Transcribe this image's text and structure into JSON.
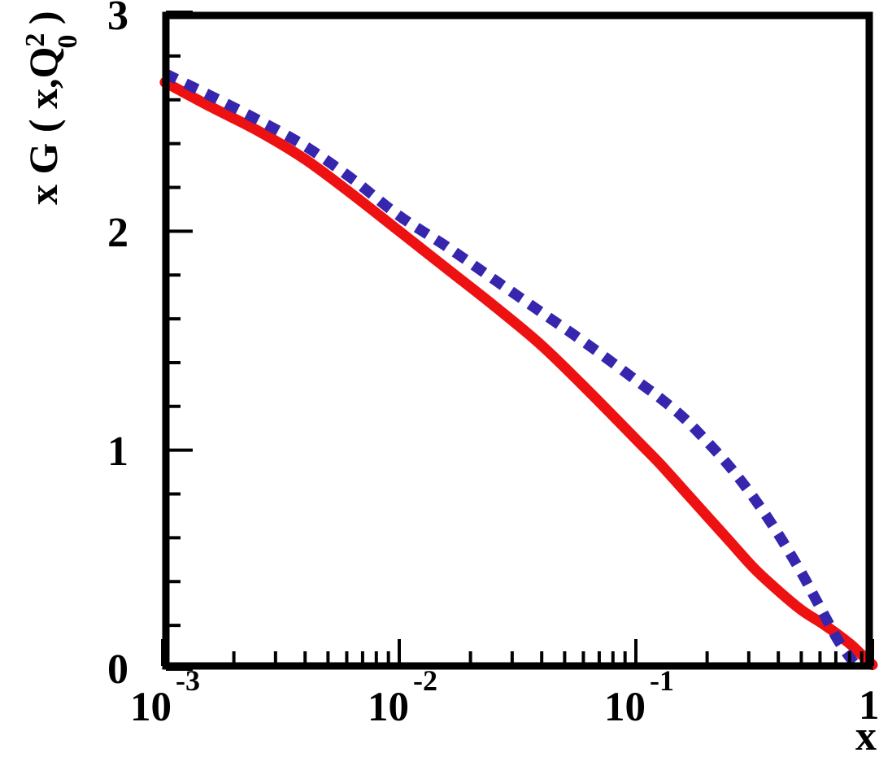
{
  "chart_data": {
    "type": "line",
    "title": "",
    "xlabel": "x",
    "ylabel": "x G ( x,Q0^2 )",
    "x_scale": "log",
    "xlim": [
      0.001,
      1
    ],
    "ylim": [
      0,
      3
    ],
    "grid": false,
    "legend": "none",
    "series": [
      {
        "name": "xG-solid-red",
        "color": "#ee1111",
        "line_style": "solid",
        "line_width": 13,
        "points": [
          [
            0.001023,
            2.68
          ],
          [
            0.001585,
            2.57
          ],
          [
            0.002512,
            2.46
          ],
          [
            0.003981,
            2.33
          ],
          [
            0.00631,
            2.17
          ],
          [
            0.01,
            2.0
          ],
          [
            0.01585,
            1.83
          ],
          [
            0.02512,
            1.66
          ],
          [
            0.03981,
            1.48
          ],
          [
            0.0631,
            1.27
          ],
          [
            0.1,
            1.05
          ],
          [
            0.1259,
            0.94
          ],
          [
            0.1585,
            0.82
          ],
          [
            0.1995,
            0.7
          ],
          [
            0.2512,
            0.58
          ],
          [
            0.3162,
            0.46
          ],
          [
            0.3981,
            0.36
          ],
          [
            0.5012,
            0.27
          ],
          [
            0.631,
            0.2
          ],
          [
            0.7943,
            0.12
          ],
          [
            0.8913,
            0.07
          ],
          [
            1.0,
            0.02
          ]
        ]
      },
      {
        "name": "xG-dashed-blue",
        "color": "#3626ae",
        "line_style": "dashed",
        "line_width": 13,
        "points": [
          [
            0.001023,
            2.72
          ],
          [
            0.001585,
            2.62
          ],
          [
            0.002512,
            2.51
          ],
          [
            0.003981,
            2.39
          ],
          [
            0.00631,
            2.24
          ],
          [
            0.01,
            2.07
          ],
          [
            0.01585,
            1.93
          ],
          [
            0.02512,
            1.78
          ],
          [
            0.03981,
            1.63
          ],
          [
            0.0631,
            1.48
          ],
          [
            0.1,
            1.32
          ],
          [
            0.1259,
            1.24
          ],
          [
            0.1585,
            1.15
          ],
          [
            0.1995,
            1.04
          ],
          [
            0.2512,
            0.92
          ],
          [
            0.3162,
            0.78
          ],
          [
            0.3981,
            0.62
          ],
          [
            0.5012,
            0.44
          ],
          [
            0.5623,
            0.34
          ],
          [
            0.631,
            0.24
          ],
          [
            0.7079,
            0.14
          ],
          [
            0.7943,
            0.06
          ],
          [
            0.8511,
            0.02
          ]
        ]
      }
    ]
  },
  "axes": {
    "y": {
      "labels": [
        {
          "v": 3,
          "t": "3"
        },
        {
          "v": 2,
          "t": "2"
        },
        {
          "v": 1,
          "t": "1"
        },
        {
          "v": 0,
          "t": "0"
        }
      ],
      "majors": [
        0,
        1,
        2,
        3
      ],
      "minor_step": 0.2
    },
    "x": {
      "title": "x",
      "decade_labels": [
        {
          "log": -3,
          "base": "10",
          "exp": "-3"
        },
        {
          "log": -2,
          "base": "10",
          "exp": "-2"
        },
        {
          "log": -1,
          "base": "10",
          "exp": "-1"
        },
        {
          "log": 0,
          "base": "1",
          "exp": ""
        }
      ],
      "major_logs": [
        -3,
        -2,
        -1,
        0
      ],
      "minor_decades": [
        -3,
        -2,
        -1
      ],
      "minor_multipliers": [
        2,
        3,
        4,
        5,
        6,
        7,
        8,
        9
      ]
    }
  },
  "y_title": {
    "main": "x G ( x,Q",
    "sup": "2",
    "sub": "0",
    "close": " )"
  },
  "colors": {
    "frame": "#000000",
    "background": "#ffffff",
    "red_curve": "#ee1111",
    "blue_curve": "#3626ae"
  }
}
